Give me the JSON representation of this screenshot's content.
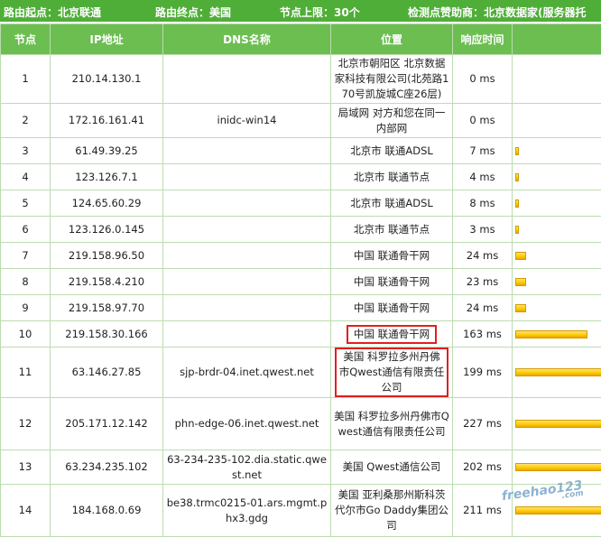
{
  "header": {
    "start": "路由起点：北京联通",
    "end": "路由终点：美国",
    "limit": "节点上限：30个",
    "sponsor": "检测点赞助商：北京数据家(服务器托"
  },
  "columns": [
    "节点",
    "IP地址",
    "DNS名称",
    "位置",
    "响应时间",
    ""
  ],
  "rows": [
    {
      "node": "1",
      "ip": "210.14.130.1",
      "dns": "",
      "loc": "北京市朝阳区 北京数据家科技有限公司(北苑路170号凯旋城C座26层)",
      "time": "0 ms",
      "frac": 0
    },
    {
      "node": "2",
      "ip": "172.16.161.41",
      "dns": "inidc-win14",
      "loc": "局域网 对方和您在同一内部网",
      "time": "0 ms",
      "frac": 0
    },
    {
      "node": "3",
      "ip": "61.49.39.25",
      "dns": "",
      "loc": "北京市 联通ADSL",
      "time": "7 ms",
      "frac": 0.035
    },
    {
      "node": "4",
      "ip": "123.126.7.1",
      "dns": "",
      "loc": "北京市 联通节点",
      "time": "4 ms",
      "frac": 0.02
    },
    {
      "node": "5",
      "ip": "124.65.60.29",
      "dns": "",
      "loc": "北京市 联通ADSL",
      "time": "8 ms",
      "frac": 0.04
    },
    {
      "node": "6",
      "ip": "123.126.0.145",
      "dns": "",
      "loc": "北京市 联通节点",
      "time": "3 ms",
      "frac": 0.015
    },
    {
      "node": "7",
      "ip": "219.158.96.50",
      "dns": "",
      "loc": "中国 联通骨干网",
      "time": "24 ms",
      "frac": 0.12
    },
    {
      "node": "8",
      "ip": "219.158.4.210",
      "dns": "",
      "loc": "中国 联通骨干网",
      "time": "23 ms",
      "frac": 0.115
    },
    {
      "node": "9",
      "ip": "219.158.97.70",
      "dns": "",
      "loc": "中国 联通骨干网",
      "time": "24 ms",
      "frac": 0.12
    },
    {
      "node": "10",
      "ip": "219.158.30.166",
      "dns": "",
      "loc": "中国 联通骨干网",
      "time": "163 ms",
      "frac": 0.8,
      "hl": "inline"
    },
    {
      "node": "11",
      "ip": "63.146.27.85",
      "dns": "sjp-brdr-04.inet.qwest.net",
      "loc": "美国 科罗拉多州丹佛市Qwest通信有限责任公司",
      "time": "199 ms",
      "frac": 0.97,
      "hl": "block"
    },
    {
      "node": "12",
      "ip": "205.171.12.142",
      "dns": "phn-edge-06.inet.qwest.net",
      "loc": "美国 科罗拉多州丹佛市Qwest通信有限责任公司",
      "time": "227 ms",
      "frac": 1
    },
    {
      "node": "13",
      "ip": "63.234.235.102",
      "dns": "63-234-235-102.dia.static.qwest.net",
      "loc": "美国 Qwest通信公司",
      "time": "202 ms",
      "frac": 0.99
    },
    {
      "node": "14",
      "ip": "184.168.0.69",
      "dns": "be38.trmc0215-01.ars.mgmt.phx3.gdg",
      "loc": "美国 亚利桑那州斯科茨代尔市Go Daddy集团公司",
      "time": "211 ms",
      "frac": 1
    }
  ],
  "watermark": {
    "text": "freehao123",
    "sub": ".com"
  }
}
